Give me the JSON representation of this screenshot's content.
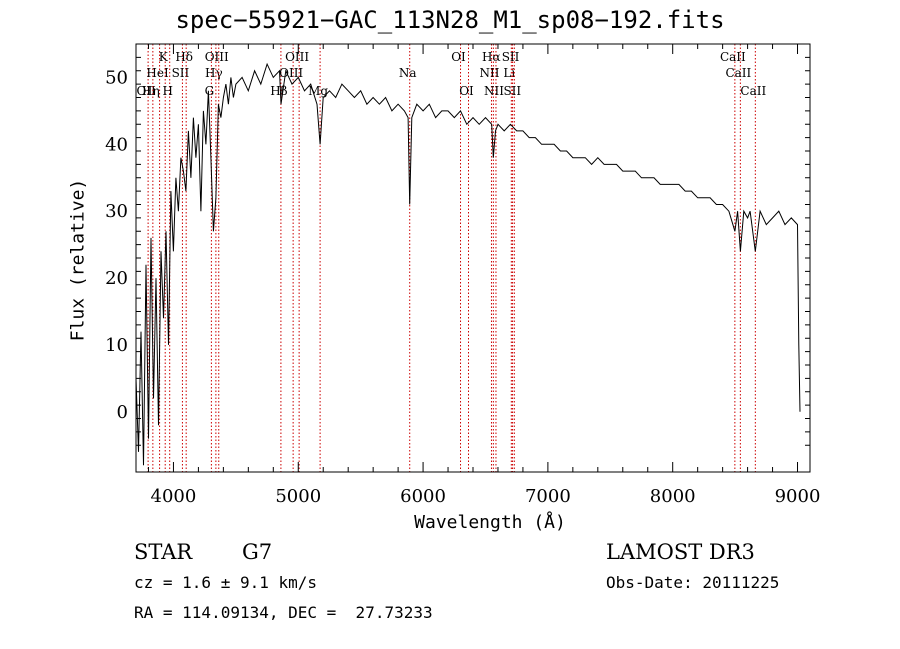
{
  "chart_data": {
    "type": "line",
    "title": "spec−55921−GAC_113N28_M1_sp08−192.fits",
    "xlabel": "Wavelength (Å)",
    "ylabel": "Flux (relative)",
    "xlim": [
      3700,
      9100
    ],
    "ylim": [
      -9,
      55
    ],
    "xticks": [
      4000,
      5000,
      6000,
      7000,
      8000,
      9000
    ],
    "yticks": [
      0,
      10,
      20,
      30,
      40,
      50
    ],
    "grid": false,
    "series": [
      {
        "points": [
          [
            3700,
            5
          ],
          [
            3720,
            -6
          ],
          [
            3740,
            12
          ],
          [
            3760,
            -8
          ],
          [
            3780,
            22
          ],
          [
            3800,
            -4
          ],
          [
            3820,
            26
          ],
          [
            3840,
            2
          ],
          [
            3860,
            20
          ],
          [
            3880,
            -2
          ],
          [
            3900,
            24
          ],
          [
            3920,
            14
          ],
          [
            3940,
            27
          ],
          [
            3960,
            10
          ],
          [
            3980,
            33
          ],
          [
            4000,
            24
          ],
          [
            4020,
            35
          ],
          [
            4040,
            30
          ],
          [
            4060,
            38
          ],
          [
            4080,
            36
          ],
          [
            4100,
            33
          ],
          [
            4120,
            42
          ],
          [
            4140,
            35
          ],
          [
            4160,
            44
          ],
          [
            4180,
            38
          ],
          [
            4200,
            43
          ],
          [
            4220,
            30
          ],
          [
            4240,
            45
          ],
          [
            4260,
            40
          ],
          [
            4280,
            48
          ],
          [
            4300,
            38
          ],
          [
            4320,
            27
          ],
          [
            4340,
            32
          ],
          [
            4360,
            46
          ],
          [
            4380,
            44
          ],
          [
            4400,
            47
          ],
          [
            4420,
            49
          ],
          [
            4440,
            46
          ],
          [
            4460,
            50
          ],
          [
            4480,
            47
          ],
          [
            4500,
            49
          ],
          [
            4550,
            50
          ],
          [
            4600,
            48
          ],
          [
            4650,
            51
          ],
          [
            4700,
            49
          ],
          [
            4750,
            52
          ],
          [
            4800,
            50
          ],
          [
            4850,
            51
          ],
          [
            4862,
            46
          ],
          [
            4900,
            51
          ],
          [
            4950,
            49
          ],
          [
            5000,
            50
          ],
          [
            5050,
            48
          ],
          [
            5100,
            49
          ],
          [
            5150,
            46
          ],
          [
            5175,
            40
          ],
          [
            5200,
            47
          ],
          [
            5250,
            48
          ],
          [
            5300,
            47
          ],
          [
            5350,
            49
          ],
          [
            5400,
            48
          ],
          [
            5450,
            47
          ],
          [
            5500,
            48
          ],
          [
            5550,
            46
          ],
          [
            5600,
            47
          ],
          [
            5650,
            46
          ],
          [
            5700,
            47
          ],
          [
            5750,
            45
          ],
          [
            5800,
            46
          ],
          [
            5850,
            45
          ],
          [
            5880,
            44
          ],
          [
            5893,
            31
          ],
          [
            5910,
            44
          ],
          [
            5950,
            46
          ],
          [
            6000,
            45
          ],
          [
            6050,
            46
          ],
          [
            6100,
            44
          ],
          [
            6150,
            45
          ],
          [
            6200,
            45
          ],
          [
            6250,
            44
          ],
          [
            6300,
            45
          ],
          [
            6350,
            43
          ],
          [
            6400,
            44
          ],
          [
            6450,
            43
          ],
          [
            6500,
            44
          ],
          [
            6550,
            43
          ],
          [
            6563,
            38
          ],
          [
            6580,
            42
          ],
          [
            6600,
            43
          ],
          [
            6650,
            42
          ],
          [
            6700,
            43
          ],
          [
            6750,
            42
          ],
          [
            6800,
            42
          ],
          [
            6850,
            41
          ],
          [
            6900,
            41
          ],
          [
            6950,
            40
          ],
          [
            7000,
            40
          ],
          [
            7050,
            40
          ],
          [
            7100,
            39
          ],
          [
            7150,
            39
          ],
          [
            7200,
            38
          ],
          [
            7250,
            38
          ],
          [
            7300,
            38
          ],
          [
            7350,
            37
          ],
          [
            7400,
            38
          ],
          [
            7450,
            37
          ],
          [
            7500,
            37
          ],
          [
            7550,
            37
          ],
          [
            7600,
            36
          ],
          [
            7650,
            36
          ],
          [
            7700,
            36
          ],
          [
            7750,
            35
          ],
          [
            7800,
            35
          ],
          [
            7850,
            35
          ],
          [
            7900,
            34
          ],
          [
            7950,
            34
          ],
          [
            8000,
            34
          ],
          [
            8050,
            34
          ],
          [
            8100,
            33
          ],
          [
            8150,
            33
          ],
          [
            8200,
            32
          ],
          [
            8250,
            32
          ],
          [
            8300,
            32
          ],
          [
            8350,
            31
          ],
          [
            8400,
            31
          ],
          [
            8450,
            30
          ],
          [
            8498,
            27
          ],
          [
            8520,
            30
          ],
          [
            8542,
            24
          ],
          [
            8570,
            30
          ],
          [
            8600,
            29
          ],
          [
            8620,
            30
          ],
          [
            8662,
            24
          ],
          [
            8700,
            30
          ],
          [
            8750,
            28
          ],
          [
            8800,
            29
          ],
          [
            8850,
            30
          ],
          [
            8900,
            28
          ],
          [
            8950,
            29
          ],
          [
            9000,
            28
          ],
          [
            9010,
            10
          ],
          [
            9020,
            0
          ]
        ]
      }
    ],
    "lines": [
      {
        "wl": 3797,
        "row": 2,
        "label": "OII"
      },
      {
        "wl": 3835,
        "row": 2,
        "label": "Hη"
      },
      {
        "wl": 3889,
        "row": 1,
        "label": "HeI"
      },
      {
        "wl": 3934,
        "row": 0,
        "label": "K"
      },
      {
        "wl": 3970,
        "row": 2,
        "label": "H"
      },
      {
        "wl": 4072,
        "row": 1,
        "label": "SII"
      },
      {
        "wl": 4102,
        "row": 0,
        "label": "Hδ"
      },
      {
        "wl": 4304,
        "row": 2,
        "label": "G"
      },
      {
        "wl": 4340,
        "row": 1,
        "label": "Hγ"
      },
      {
        "wl": 4363,
        "row": 0,
        "label": "OIII"
      },
      {
        "wl": 4861,
        "row": 2,
        "label": "Hβ"
      },
      {
        "wl": 4959,
        "row": 1,
        "label": "OIII"
      },
      {
        "wl": 5007,
        "row": 0,
        "label": "OIII"
      },
      {
        "wl": 5175,
        "row": 2,
        "label": "Mg"
      },
      {
        "wl": 5893,
        "row": 1,
        "label": "Na"
      },
      {
        "wl": 6300,
        "row": 0,
        "label": "OI"
      },
      {
        "wl": 6364,
        "row": 2,
        "label": "OI"
      },
      {
        "wl": 6548,
        "row": 1,
        "label": "NII"
      },
      {
        "wl": 6563,
        "row": 0,
        "label": "Hα"
      },
      {
        "wl": 6584,
        "row": 2,
        "label": "NII"
      },
      {
        "wl": 6707,
        "row": 1,
        "label": "Li"
      },
      {
        "wl": 6717,
        "row": 0,
        "label": "SII"
      },
      {
        "wl": 6731,
        "row": 2,
        "label": "SII"
      },
      {
        "wl": 8498,
        "row": 0,
        "label": "CaII"
      },
      {
        "wl": 8542,
        "row": 1,
        "label": "CaII"
      },
      {
        "wl": 8662,
        "row": 2,
        "label": "CaII"
      }
    ],
    "line_color": "#cc0000"
  },
  "info": {
    "obj_class": "STAR",
    "subclass": "G7",
    "survey": "LAMOST DR3",
    "cz": "cz = 1.6 ± 9.1 km/s",
    "obs_date": "Obs-Date: 20111225",
    "radec": "RA = 114.09134, DEC =  27.73233"
  }
}
